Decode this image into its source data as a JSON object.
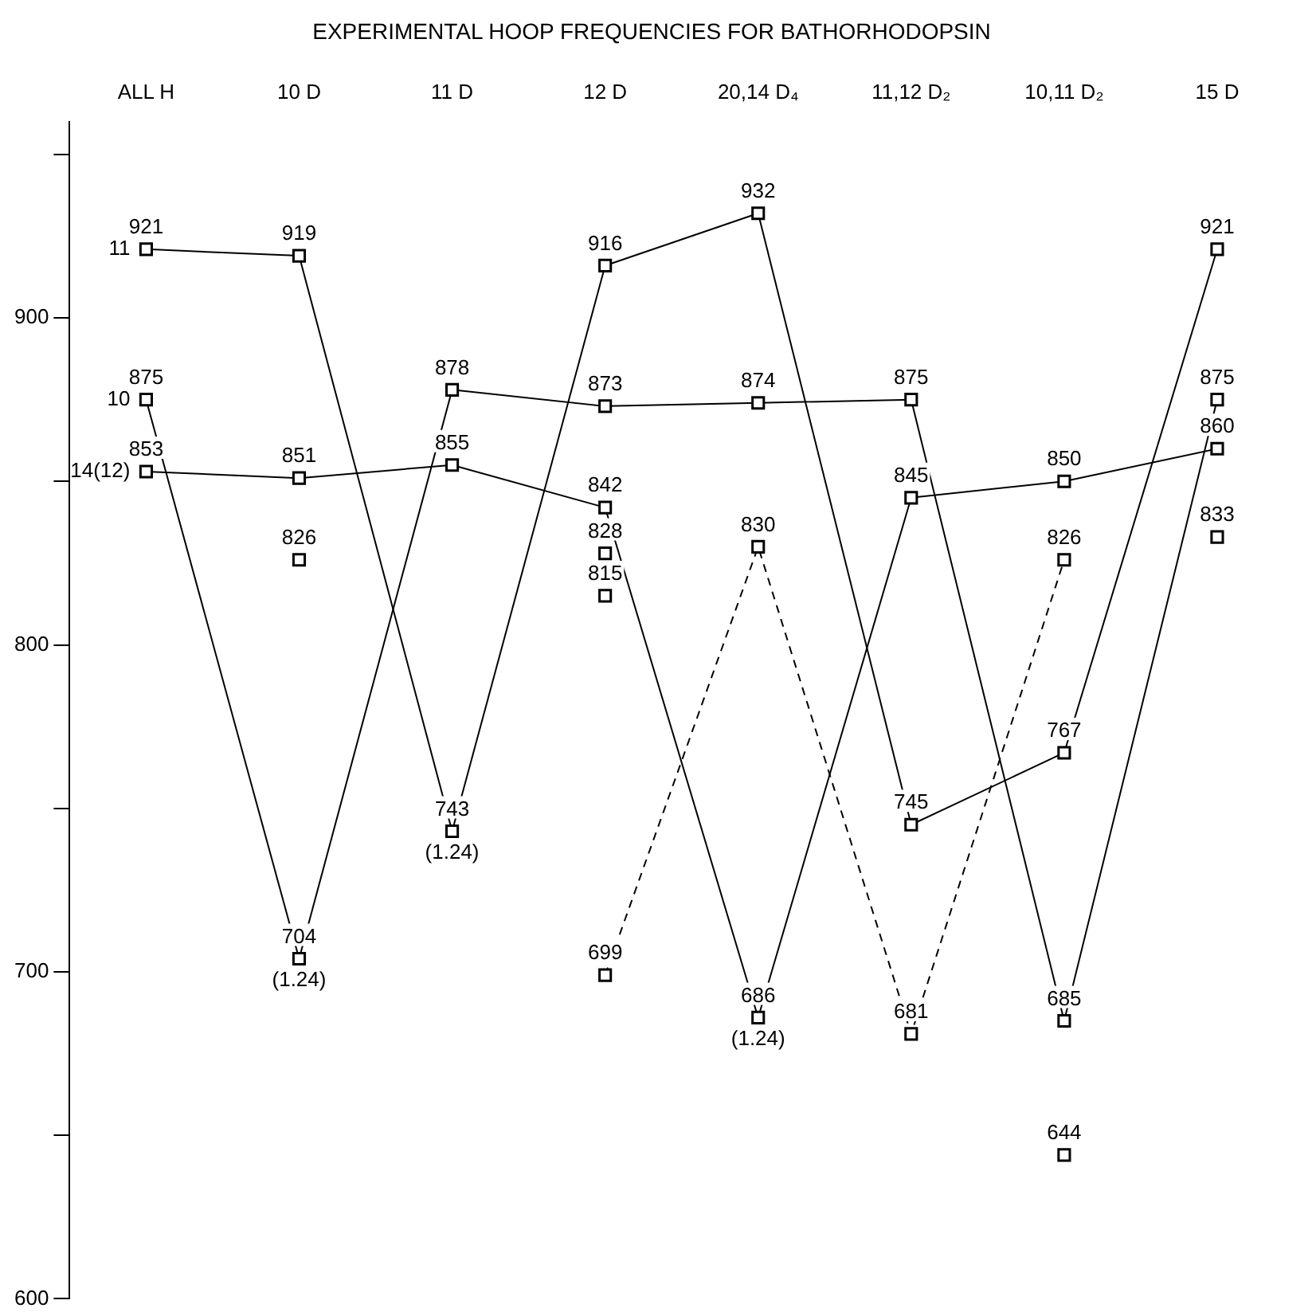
{
  "chart_data": {
    "type": "line",
    "title": "EXPERIMENTAL HOOP FREQUENCIES FOR BATHORHODOPSIN",
    "categories": [
      "ALL H",
      "10 D",
      "11 D",
      "12 D",
      "20,14 D₄",
      "11,12 D₂",
      "10,11 D₂",
      "15 D"
    ],
    "series": [
      {
        "name": "11",
        "color": "#000000",
        "values": [
          921,
          919,
          743,
          916,
          932,
          745,
          767,
          921
        ]
      },
      {
        "name": "10",
        "color": "#000000",
        "values": [
          875,
          704,
          878,
          873,
          874,
          875,
          685,
          875
        ]
      },
      {
        "name": "14(12)",
        "color": "#000000",
        "values": [
          853,
          851,
          855,
          842,
          686,
          845,
          850,
          860
        ]
      },
      {
        "color": "#000000",
        "line_style": "dashed",
        "values": [
          null,
          null,
          null,
          699,
          830,
          681,
          826,
          null
        ]
      },
      {
        "type": "scatter",
        "color": "#000000",
        "x": [
          "10 D",
          "12 D",
          "12 D",
          "10,11 D₂",
          "15 D"
        ],
        "values": [
          826,
          828,
          815,
          644,
          833
        ]
      }
    ],
    "ylim": [
      600,
      960
    ],
    "yticks": [
      600,
      {
        "value": 650,
        "label": null
      },
      700,
      {
        "value": 750,
        "label": null
      },
      800,
      {
        "value": 850,
        "label": null
      },
      900,
      {
        "value": 950,
        "label": null
      }
    ],
    "marker": "square",
    "line_style": "solid",
    "grid": false,
    "legend": false,
    "data_labels": true,
    "annotations": [
      {
        "text": "(1.24)",
        "x": "10 D",
        "y": 704
      },
      {
        "text": "(1.24)",
        "x": "11 D",
        "y": 743
      },
      {
        "text": "(1.24)",
        "x": "20,14 D₄",
        "y": 686
      }
    ]
  }
}
